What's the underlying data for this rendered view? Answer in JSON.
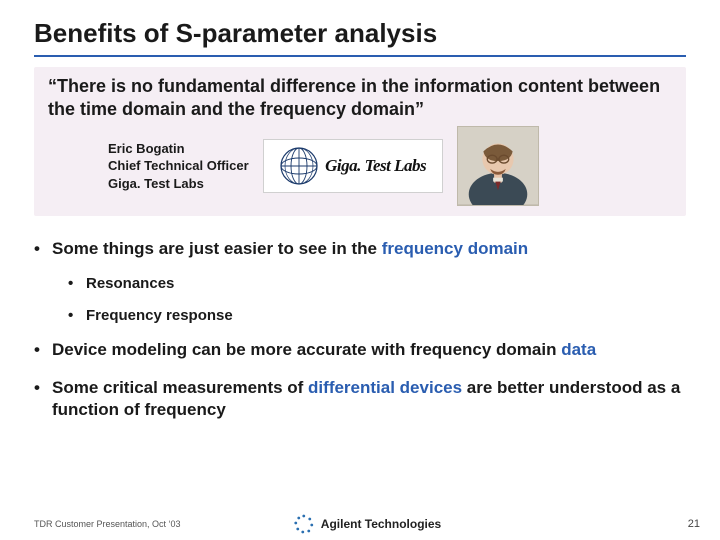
{
  "title": "Benefits of S-parameter analysis",
  "quote": "“There is no fundamental difference in the information content between the time domain and the frequency domain”",
  "attribution": {
    "name": "Eric Bogatin",
    "role": "Chief Technical Officer",
    "company": "Giga. Test Labs"
  },
  "logo": {
    "text": "Giga. Test Labs"
  },
  "bullets": [
    {
      "level": 1,
      "prefix": "Some things are just easier to see in the ",
      "highlight": "frequency domain",
      "suffix": ""
    },
    {
      "level": 2,
      "prefix": "Resonances",
      "highlight": "",
      "suffix": ""
    },
    {
      "level": 2,
      "prefix": "Frequency response",
      "highlight": "",
      "suffix": ""
    },
    {
      "level": 1,
      "prefix": "Device modeling can be more accurate with frequency domain ",
      "highlight": "data",
      "suffix": ""
    },
    {
      "level": 1,
      "prefix": "Some critical measurements of ",
      "highlight": "differential devices",
      "suffix": " are better understood as a function of frequency"
    }
  ],
  "footer": {
    "left": "TDR Customer Presentation, Oct ‘03",
    "brand": "Agilent Technologies",
    "page": "21"
  },
  "colors": {
    "accent": "#2a5db0",
    "quote_bg": "#f5eef4"
  }
}
